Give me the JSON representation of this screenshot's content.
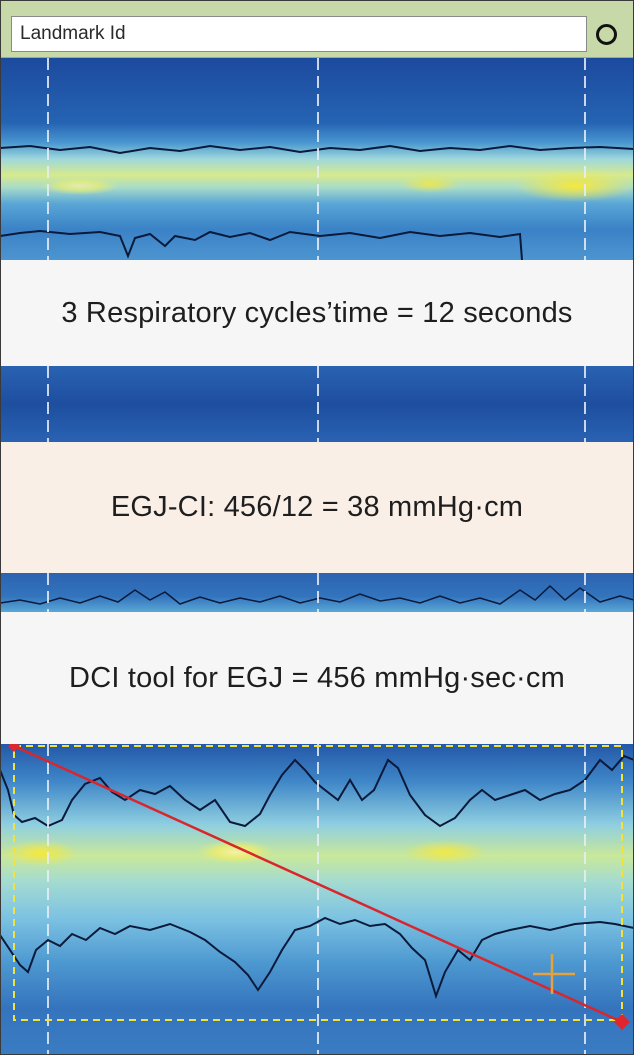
{
  "toolbar": {
    "landmark_label": "Landmark Id",
    "circle_icon": "circle-outline-icon"
  },
  "annotations": {
    "respiratory": "3 Respiratory cycles’time = 12 seconds",
    "egj_ci": "EGJ-CI: 456/12 = 38 mmHg·cm",
    "dci_tool": "DCI tool for EGJ = 456 mmHg·sec·cm"
  },
  "colors": {
    "deep_blue": "#1f4fa3",
    "mid_blue": "#3d86c9",
    "light_blue": "#7fc3e4",
    "cyan": "#a6e0dc",
    "yellow_green": "#d9ec8a",
    "yellow": "#f3ea4a",
    "isobar_line": "#0b1a3a",
    "dci_line": "#d8262d",
    "dci_box": "#f3e23b",
    "crosshair": "#e7a23a"
  },
  "icons": [
    "circle-outline-icon",
    "crosshair-icon",
    "red-diamond-marker-icon"
  ]
}
